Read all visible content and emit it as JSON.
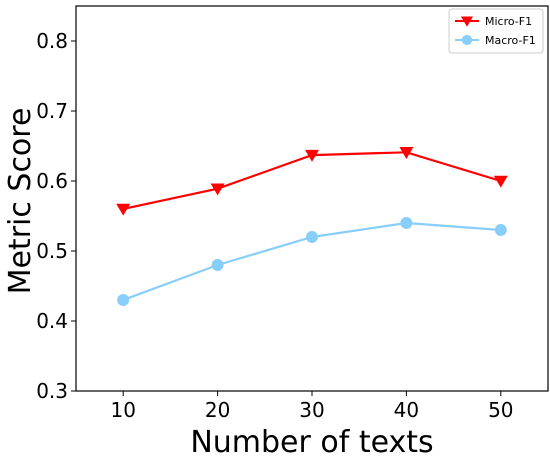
{
  "chart_data": {
    "type": "line",
    "title": "",
    "xlabel": "Number of texts",
    "ylabel": "Metric Score",
    "x": [
      10,
      20,
      30,
      40,
      50
    ],
    "xlim": [
      5,
      55
    ],
    "ylim": [
      0.3,
      0.85
    ],
    "xticks": [
      10,
      20,
      30,
      40,
      50
    ],
    "xtick_labels": [
      "10",
      "20",
      "30",
      "40",
      "50"
    ],
    "yticks": [
      0.3,
      0.4,
      0.5,
      0.6,
      0.7,
      0.8
    ],
    "ytick_labels": [
      "0.3",
      "0.4",
      "0.5",
      "0.6",
      "0.7",
      "0.8"
    ],
    "grid": false,
    "legend_position": "top-right",
    "series": [
      {
        "name": "Micro-F1",
        "values": [
          0.56,
          0.589,
          0.637,
          0.641,
          0.6
        ],
        "color": "#ff0000",
        "marker": "triangle-down"
      },
      {
        "name": "Macro-F1",
        "values": [
          0.43,
          0.48,
          0.52,
          0.54,
          0.53
        ],
        "color": "#87cefa",
        "marker": "circle"
      }
    ]
  }
}
